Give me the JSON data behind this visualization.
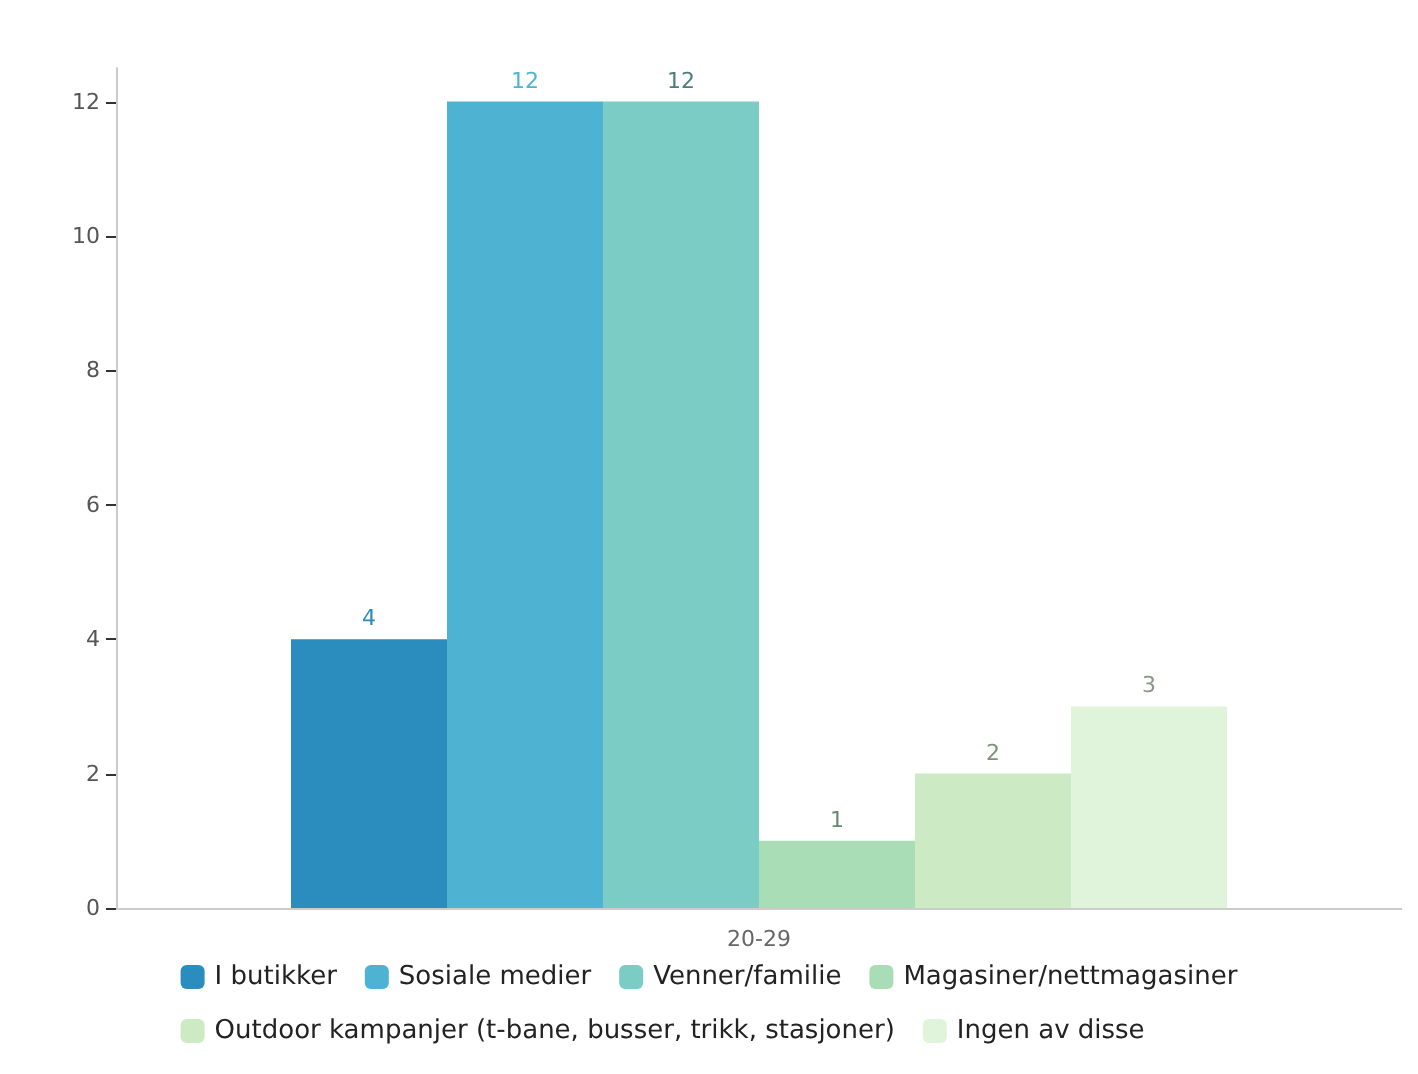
{
  "chart_data": {
    "type": "bar",
    "categories": [
      "20-29"
    ],
    "series": [
      {
        "name": "I butikker",
        "color": "#2b8cbe",
        "values": [
          4
        ]
      },
      {
        "name": "Sosiale medier",
        "color": "#4eb3d3",
        "values": [
          12
        ]
      },
      {
        "name": "Venner/familie",
        "color": "#7bccc4",
        "values": [
          12
        ]
      },
      {
        "name": "Magasiner/nettmagasiner",
        "color": "#a8ddb5",
        "values": [
          1
        ]
      },
      {
        "name": "Outdoor kampanjer (t-bane, busser, trikk, stasjoner)",
        "color": "#ccebc5",
        "values": [
          2
        ]
      },
      {
        "name": "Ingen av disse",
        "color": "#e0f3db",
        "values": [
          3
        ]
      }
    ],
    "ylim": [
      0,
      12.5
    ],
    "yticks": [
      0,
      2,
      4,
      6,
      8,
      10,
      12
    ],
    "grid": false,
    "legend": "bottom",
    "data_labels": true
  }
}
